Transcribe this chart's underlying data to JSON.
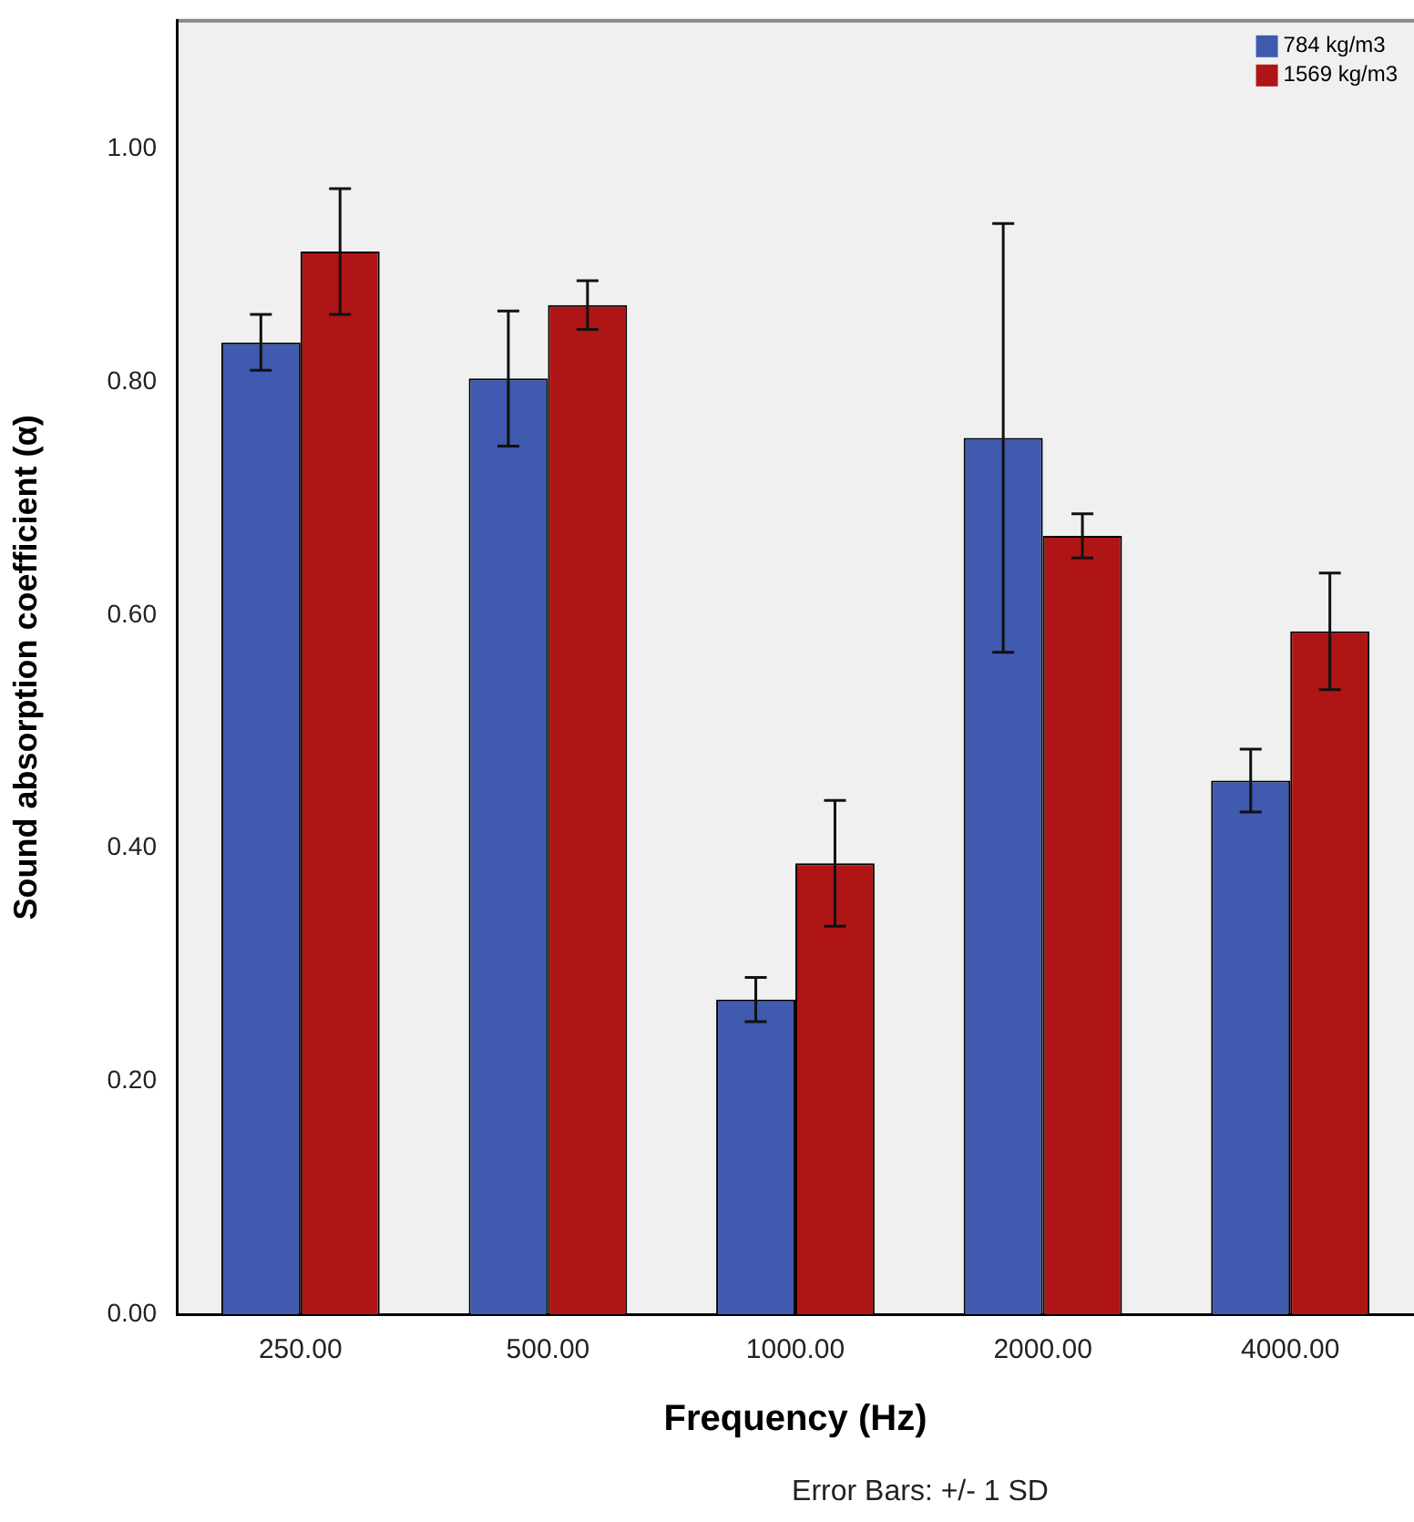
{
  "chart_data": {
    "type": "bar",
    "xlabel": "Frequency (Hz)",
    "ylabel": "Sound absorption coefficient (α)",
    "categories": [
      "250.00",
      "500.00",
      "1000.00",
      "2000.00",
      "4000.00"
    ],
    "series": [
      {
        "name": "784 kg/m3",
        "color": "#3f5aae",
        "values": [
          0.834,
          0.803,
          0.27,
          0.752,
          0.458
        ],
        "errors": [
          0.024,
          0.058,
          0.019,
          0.184,
          0.027
        ]
      },
      {
        "name": "1569 kg/m3",
        "color": "#b01515",
        "values": [
          0.912,
          0.866,
          0.387,
          0.668,
          0.586
        ],
        "errors": [
          0.054,
          0.021,
          0.054,
          0.019,
          0.05
        ]
      }
    ],
    "ylim": [
      0,
      1.11
    ],
    "yticks": [
      {
        "value": 0,
        "label": "0.00"
      },
      {
        "value": 0.2,
        "label": "0.20"
      },
      {
        "value": 0.4,
        "label": "0.40"
      },
      {
        "value": 0.6,
        "label": "0.60"
      },
      {
        "value": 0.8,
        "label": "0.80"
      },
      {
        "value": 1,
        "label": "1.00"
      }
    ],
    "grid": false,
    "legend": "top right",
    "annotations": [
      "Error Bars: +/- 1 SD"
    ]
  }
}
